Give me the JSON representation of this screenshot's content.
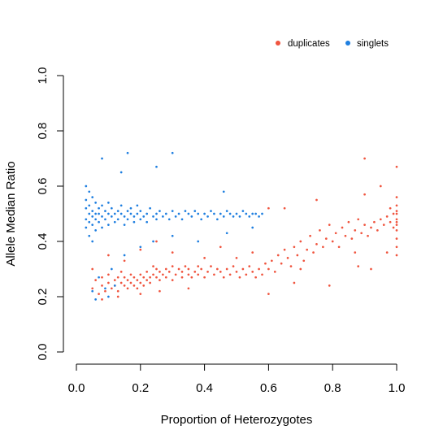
{
  "chart_data": {
    "type": "scatter",
    "xlabel": "Proportion of Heterozygotes",
    "ylabel": "Allele Median Ratio",
    "xlim": [
      0,
      1
    ],
    "ylim": [
      0,
      1
    ],
    "x_ticks": [
      "0.0",
      "0.2",
      "0.4",
      "0.6",
      "0.8",
      "1.0"
    ],
    "y_ticks": [
      "0.0",
      "0.2",
      "0.4",
      "0.6",
      "0.8",
      "1.0"
    ],
    "grid": false,
    "legend_position": "top-right",
    "series": [
      {
        "name": "duplicates",
        "color": "#f0553f",
        "points": [
          [
            0.05,
            0.23
          ],
          [
            0.06,
            0.26
          ],
          [
            0.07,
            0.21
          ],
          [
            0.08,
            0.27
          ],
          [
            0.08,
            0.24
          ],
          [
            0.09,
            0.22
          ],
          [
            0.1,
            0.25
          ],
          [
            0.1,
            0.28
          ],
          [
            0.11,
            0.23
          ],
          [
            0.12,
            0.26
          ],
          [
            0.12,
            0.24
          ],
          [
            0.13,
            0.27
          ],
          [
            0.13,
            0.22
          ],
          [
            0.14,
            0.25
          ],
          [
            0.14,
            0.29
          ],
          [
            0.15,
            0.24
          ],
          [
            0.15,
            0.27
          ],
          [
            0.16,
            0.23
          ],
          [
            0.16,
            0.26
          ],
          [
            0.17,
            0.25
          ],
          [
            0.17,
            0.28
          ],
          [
            0.18,
            0.24
          ],
          [
            0.18,
            0.27
          ],
          [
            0.19,
            0.26
          ],
          [
            0.19,
            0.23
          ],
          [
            0.2,
            0.25
          ],
          [
            0.2,
            0.28
          ],
          [
            0.21,
            0.27
          ],
          [
            0.21,
            0.24
          ],
          [
            0.22,
            0.26
          ],
          [
            0.22,
            0.29
          ],
          [
            0.23,
            0.27
          ],
          [
            0.23,
            0.25
          ],
          [
            0.24,
            0.28
          ],
          [
            0.24,
            0.31
          ],
          [
            0.25,
            0.27
          ],
          [
            0.25,
            0.3
          ],
          [
            0.26,
            0.26
          ],
          [
            0.26,
            0.29
          ],
          [
            0.27,
            0.28
          ],
          [
            0.28,
            0.3
          ],
          [
            0.28,
            0.27
          ],
          [
            0.29,
            0.29
          ],
          [
            0.3,
            0.26
          ],
          [
            0.3,
            0.31
          ],
          [
            0.31,
            0.28
          ],
          [
            0.32,
            0.3
          ],
          [
            0.33,
            0.27
          ],
          [
            0.33,
            0.29
          ],
          [
            0.34,
            0.31
          ],
          [
            0.35,
            0.28
          ],
          [
            0.35,
            0.3
          ],
          [
            0.36,
            0.27
          ],
          [
            0.37,
            0.29
          ],
          [
            0.38,
            0.31
          ],
          [
            0.38,
            0.28
          ],
          [
            0.39,
            0.3
          ],
          [
            0.4,
            0.27
          ],
          [
            0.41,
            0.29
          ],
          [
            0.42,
            0.31
          ],
          [
            0.43,
            0.28
          ],
          [
            0.44,
            0.3
          ],
          [
            0.45,
            0.29
          ],
          [
            0.46,
            0.27
          ],
          [
            0.47,
            0.3
          ],
          [
            0.48,
            0.28
          ],
          [
            0.49,
            0.31
          ],
          [
            0.5,
            0.29
          ],
          [
            0.51,
            0.27
          ],
          [
            0.52,
            0.3
          ],
          [
            0.53,
            0.28
          ],
          [
            0.54,
            0.31
          ],
          [
            0.55,
            0.29
          ],
          [
            0.56,
            0.27
          ],
          [
            0.57,
            0.3
          ],
          [
            0.58,
            0.28
          ],
          [
            0.59,
            0.32
          ],
          [
            0.6,
            0.3
          ],
          [
            0.61,
            0.33
          ],
          [
            0.62,
            0.29
          ],
          [
            0.63,
            0.35
          ],
          [
            0.64,
            0.32
          ],
          [
            0.65,
            0.37
          ],
          [
            0.66,
            0.34
          ],
          [
            0.67,
            0.31
          ],
          [
            0.68,
            0.38
          ],
          [
            0.69,
            0.35
          ],
          [
            0.7,
            0.4
          ],
          [
            0.71,
            0.33
          ],
          [
            0.72,
            0.37
          ],
          [
            0.73,
            0.42
          ],
          [
            0.74,
            0.36
          ],
          [
            0.75,
            0.39
          ],
          [
            0.76,
            0.44
          ],
          [
            0.77,
            0.38
          ],
          [
            0.78,
            0.41
          ],
          [
            0.79,
            0.46
          ],
          [
            0.8,
            0.4
          ],
          [
            0.81,
            0.43
          ],
          [
            0.82,
            0.38
          ],
          [
            0.83,
            0.45
          ],
          [
            0.84,
            0.42
          ],
          [
            0.85,
            0.47
          ],
          [
            0.86,
            0.41
          ],
          [
            0.87,
            0.44
          ],
          [
            0.88,
            0.48
          ],
          [
            0.89,
            0.43
          ],
          [
            0.9,
            0.46
          ],
          [
            0.91,
            0.42
          ],
          [
            0.92,
            0.45
          ],
          [
            0.93,
            0.47
          ],
          [
            0.94,
            0.44
          ],
          [
            0.95,
            0.48
          ],
          [
            0.96,
            0.46
          ],
          [
            0.97,
            0.49
          ],
          [
            0.98,
            0.47
          ],
          [
            0.98,
            0.52
          ],
          [
            0.99,
            0.45
          ],
          [
            0.99,
            0.5
          ],
          [
            1.0,
            0.48
          ],
          [
            1.0,
            0.53
          ],
          [
            1.0,
            0.44
          ],
          [
            1.0,
            0.51
          ],
          [
            1.0,
            0.46
          ],
          [
            1.0,
            0.56
          ],
          [
            1.0,
            0.41
          ],
          [
            1.0,
            0.38
          ],
          [
            1.0,
            0.5
          ],
          [
            1.0,
            0.47
          ],
          [
            1.0,
            0.35
          ],
          [
            0.9,
            0.7
          ],
          [
            0.95,
            0.6
          ],
          [
            0.9,
            0.57
          ],
          [
            0.75,
            0.55
          ],
          [
            0.65,
            0.52
          ],
          [
            0.6,
            0.52
          ],
          [
            0.7,
            0.3
          ],
          [
            0.79,
            0.24
          ],
          [
            0.6,
            0.21
          ],
          [
            0.87,
            0.36
          ],
          [
            0.92,
            0.3
          ],
          [
            0.68,
            0.25
          ],
          [
            0.88,
            0.31
          ],
          [
            0.97,
            0.36
          ],
          [
            1.0,
            0.67
          ],
          [
            0.55,
            0.36
          ],
          [
            0.5,
            0.34
          ],
          [
            0.45,
            0.38
          ],
          [
            0.4,
            0.34
          ],
          [
            0.3,
            0.36
          ],
          [
            0.25,
            0.4
          ],
          [
            0.2,
            0.37
          ],
          [
            0.15,
            0.33
          ],
          [
            0.1,
            0.35
          ],
          [
            0.05,
            0.3
          ],
          [
            0.08,
            0.19
          ],
          [
            0.13,
            0.2
          ],
          [
            0.2,
            0.21
          ],
          [
            0.26,
            0.22
          ],
          [
            0.35,
            0.23
          ]
        ]
      },
      {
        "name": "singlets",
        "color": "#1f7fe0",
        "points": [
          [
            0.03,
            0.48
          ],
          [
            0.03,
            0.52
          ],
          [
            0.03,
            0.55
          ],
          [
            0.03,
            0.45
          ],
          [
            0.03,
            0.6
          ],
          [
            0.04,
            0.5
          ],
          [
            0.04,
            0.47
          ],
          [
            0.04,
            0.53
          ],
          [
            0.04,
            0.42
          ],
          [
            0.04,
            0.58
          ],
          [
            0.05,
            0.49
          ],
          [
            0.05,
            0.51
          ],
          [
            0.05,
            0.46
          ],
          [
            0.05,
            0.56
          ],
          [
            0.05,
            0.4
          ],
          [
            0.06,
            0.5
          ],
          [
            0.06,
            0.48
          ],
          [
            0.06,
            0.54
          ],
          [
            0.06,
            0.44
          ],
          [
            0.07,
            0.52
          ],
          [
            0.07,
            0.47
          ],
          [
            0.07,
            0.5
          ],
          [
            0.08,
            0.49
          ],
          [
            0.08,
            0.53
          ],
          [
            0.08,
            0.45
          ],
          [
            0.09,
            0.51
          ],
          [
            0.09,
            0.48
          ],
          [
            0.1,
            0.5
          ],
          [
            0.1,
            0.46
          ],
          [
            0.1,
            0.54
          ],
          [
            0.11,
            0.49
          ],
          [
            0.11,
            0.52
          ],
          [
            0.12,
            0.5
          ],
          [
            0.12,
            0.47
          ],
          [
            0.13,
            0.51
          ],
          [
            0.13,
            0.48
          ],
          [
            0.14,
            0.5
          ],
          [
            0.14,
            0.53
          ],
          [
            0.15,
            0.49
          ],
          [
            0.15,
            0.46
          ],
          [
            0.16,
            0.51
          ],
          [
            0.16,
            0.48
          ],
          [
            0.17,
            0.5
          ],
          [
            0.17,
            0.52
          ],
          [
            0.18,
            0.49
          ],
          [
            0.18,
            0.47
          ],
          [
            0.19,
            0.5
          ],
          [
            0.19,
            0.53
          ],
          [
            0.2,
            0.48
          ],
          [
            0.2,
            0.51
          ],
          [
            0.21,
            0.49
          ],
          [
            0.22,
            0.5
          ],
          [
            0.22,
            0.47
          ],
          [
            0.23,
            0.52
          ],
          [
            0.24,
            0.49
          ],
          [
            0.25,
            0.5
          ],
          [
            0.25,
            0.48
          ],
          [
            0.26,
            0.51
          ],
          [
            0.27,
            0.49
          ],
          [
            0.28,
            0.5
          ],
          [
            0.29,
            0.48
          ],
          [
            0.3,
            0.51
          ],
          [
            0.31,
            0.49
          ],
          [
            0.32,
            0.5
          ],
          [
            0.33,
            0.48
          ],
          [
            0.34,
            0.51
          ],
          [
            0.35,
            0.5
          ],
          [
            0.36,
            0.49
          ],
          [
            0.37,
            0.51
          ],
          [
            0.38,
            0.5
          ],
          [
            0.39,
            0.48
          ],
          [
            0.4,
            0.5
          ],
          [
            0.41,
            0.49
          ],
          [
            0.42,
            0.51
          ],
          [
            0.43,
            0.5
          ],
          [
            0.44,
            0.48
          ],
          [
            0.45,
            0.5
          ],
          [
            0.46,
            0.49
          ],
          [
            0.47,
            0.51
          ],
          [
            0.48,
            0.5
          ],
          [
            0.49,
            0.49
          ],
          [
            0.5,
            0.5
          ],
          [
            0.51,
            0.49
          ],
          [
            0.52,
            0.51
          ],
          [
            0.53,
            0.5
          ],
          [
            0.54,
            0.49
          ],
          [
            0.55,
            0.5
          ],
          [
            0.56,
            0.5
          ],
          [
            0.57,
            0.49
          ],
          [
            0.58,
            0.5
          ],
          [
            0.16,
            0.72
          ],
          [
            0.3,
            0.72
          ],
          [
            0.08,
            0.7
          ],
          [
            0.14,
            0.65
          ],
          [
            0.25,
            0.67
          ],
          [
            0.1,
            0.2
          ],
          [
            0.06,
            0.19
          ],
          [
            0.09,
            0.23
          ],
          [
            0.12,
            0.24
          ],
          [
            0.07,
            0.27
          ],
          [
            0.05,
            0.22
          ],
          [
            0.11,
            0.3
          ],
          [
            0.15,
            0.35
          ],
          [
            0.2,
            0.38
          ],
          [
            0.24,
            0.4
          ],
          [
            0.3,
            0.42
          ],
          [
            0.38,
            0.4
          ],
          [
            0.47,
            0.43
          ],
          [
            0.55,
            0.45
          ],
          [
            0.46,
            0.58
          ]
        ]
      }
    ]
  }
}
